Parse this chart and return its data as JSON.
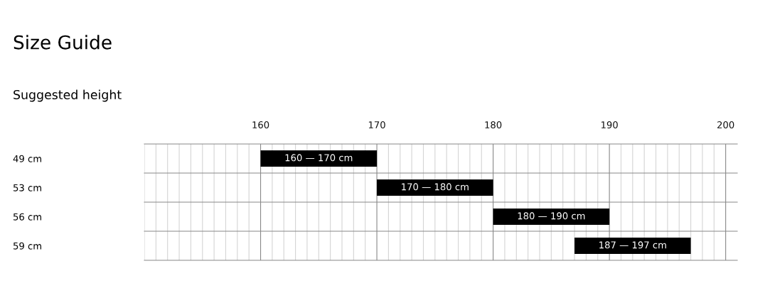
{
  "chart_data": {
    "type": "bar",
    "orientation": "horizontal",
    "title": "Size Guide",
    "subtitle": "Suggested height",
    "categories": [
      "49 cm",
      "53 cm",
      "56 cm",
      "59 cm"
    ],
    "base": [
      160,
      170,
      180,
      187
    ],
    "values": [
      10,
      10,
      10,
      10
    ],
    "annotations": [
      "160 — 170 cm",
      "170 — 180 cm",
      "180 — 190 cm",
      "187 — 197 cm"
    ],
    "color": "#000000",
    "xlim": [
      150,
      201
    ],
    "xticks": [
      {
        "value": 150,
        "label": null
      },
      {
        "value": 151,
        "label": null
      },
      {
        "value": 152,
        "label": null
      },
      {
        "value": 153,
        "label": null
      },
      {
        "value": 154,
        "label": null
      },
      {
        "value": 155,
        "label": null
      },
      {
        "value": 156,
        "label": null
      },
      {
        "value": 157,
        "label": null
      },
      {
        "value": 158,
        "label": null
      },
      {
        "value": 159,
        "label": null
      },
      160,
      {
        "value": 161,
        "label": null
      },
      {
        "value": 162,
        "label": null
      },
      {
        "value": 163,
        "label": null
      },
      {
        "value": 164,
        "label": null
      },
      {
        "value": 165,
        "label": null
      },
      {
        "value": 166,
        "label": null
      },
      {
        "value": 167,
        "label": null
      },
      {
        "value": 168,
        "label": null
      },
      {
        "value": 169,
        "label": null
      },
      170,
      {
        "value": 171,
        "label": null
      },
      {
        "value": 172,
        "label": null
      },
      {
        "value": 173,
        "label": null
      },
      {
        "value": 174,
        "label": null
      },
      {
        "value": 175,
        "label": null
      },
      {
        "value": 176,
        "label": null
      },
      {
        "value": 177,
        "label": null
      },
      {
        "value": 178,
        "label": null
      },
      {
        "value": 179,
        "label": null
      },
      180,
      {
        "value": 181,
        "label": null
      },
      {
        "value": 182,
        "label": null
      },
      {
        "value": 183,
        "label": null
      },
      {
        "value": 184,
        "label": null
      },
      {
        "value": 185,
        "label": null
      },
      {
        "value": 186,
        "label": null
      },
      {
        "value": 187,
        "label": null
      },
      {
        "value": 188,
        "label": null
      },
      {
        "value": 189,
        "label": null
      },
      190,
      {
        "value": 191,
        "label": null
      },
      {
        "value": 192,
        "label": null
      },
      {
        "value": 193,
        "label": null
      },
      {
        "value": 194,
        "label": null
      },
      {
        "value": 195,
        "label": null
      },
      {
        "value": 196,
        "label": null
      },
      {
        "value": 197,
        "label": null
      },
      {
        "value": 198,
        "label": null
      },
      {
        "value": 199,
        "label": null
      },
      200
    ],
    "grid": "x",
    "legend": false
  }
}
